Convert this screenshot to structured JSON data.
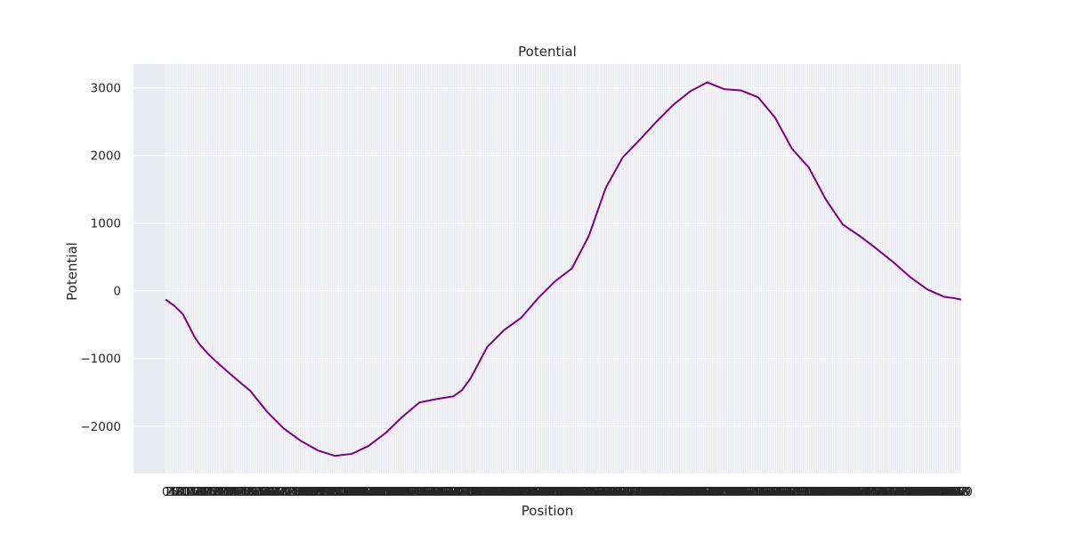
{
  "chart_data": {
    "type": "line",
    "title": "Potential",
    "xlabel": "Position",
    "ylabel": "Potential",
    "xlim": [
      -19,
      470
    ],
    "ylim": [
      -2700,
      3350
    ],
    "yticks": [
      -2000,
      -1000,
      0,
      1000,
      2000,
      3000
    ],
    "ytick_labels": [
      "−2000",
      "−1000",
      "0",
      "1000",
      "2000",
      "3000"
    ],
    "grid": true,
    "line_color": "#800080",
    "background_color": "#eaeaf2",
    "grid_color": "#ffffff",
    "series": [
      {
        "x": [
          0,
          5,
          10,
          14,
          17,
          20,
          25,
          30,
          40,
          50,
          60,
          70,
          80,
          90,
          95,
          100,
          110,
          120,
          130,
          140,
          150,
          160,
          170,
          175,
          180,
          190,
          200,
          210,
          220,
          230,
          240,
          250,
          260,
          270,
          275,
          280,
          290,
          300,
          310,
          320,
          330,
          340,
          350,
          360,
          370,
          380,
          390,
          400,
          410,
          420,
          430,
          440,
          450,
          460,
          463,
          466,
          470
        ],
        "values": [
          -130,
          -220,
          -340,
          -530,
          -680,
          -790,
          -930,
          -1050,
          -1270,
          -1480,
          -1790,
          -2040,
          -2220,
          -2360,
          -2400,
          -2440,
          -2410,
          -2290,
          -2100,
          -1860,
          -1650,
          -1600,
          -1560,
          -1470,
          -1300,
          -830,
          -580,
          -400,
          -110,
          140,
          330,
          810,
          1520,
          1970,
          2100,
          2230,
          2500,
          2750,
          2950,
          3080,
          2980,
          2960,
          2860,
          2560,
          2100,
          1820,
          1350,
          980,
          810,
          620,
          420,
          200,
          20,
          -90,
          -100,
          -110,
          -130
        ]
      }
    ]
  }
}
